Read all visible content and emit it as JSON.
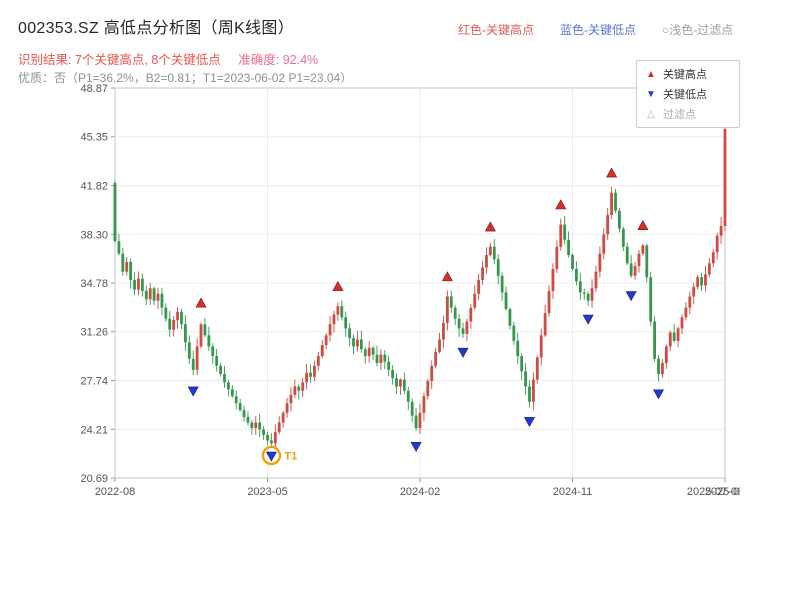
{
  "header": {
    "title": "002353.SZ 高低点分析图（周K线图）",
    "legend_high": "红色-关键高点",
    "legend_low": "蓝色-关键低点",
    "legend_filtered": "○浅色-过滤点"
  },
  "results": {
    "summary": "识别结果: 7个关键高点, 8个关键低点",
    "accuracy": "准确度: 92.4%",
    "quality": "优质：否（P1=36.2%，B2=0.81；T1=2023-06-02 P1=23.04）"
  },
  "legend_box": {
    "high_icon": "▲",
    "high": "关键高点",
    "low_icon": "▼",
    "low": "关键低点",
    "filtered_icon": "△",
    "filtered": "过滤点"
  },
  "chart_data": {
    "type": "candlestick",
    "title": "002353.SZ 高低点分析图（周K线图）",
    "interval": "weekly",
    "ylim": [
      20.69,
      48.87
    ],
    "y_ticks": [
      "48.87",
      "45.35",
      "41.82",
      "38.30",
      "34.78",
      "31.26",
      "27.74",
      "24.21",
      "20.69"
    ],
    "x_ticks": [
      {
        "week": 0,
        "label": "2022-08"
      },
      {
        "week": 39,
        "label": "2023-05"
      },
      {
        "week": 78,
        "label": "2024-02"
      },
      {
        "week": 117,
        "label": "2024-11"
      },
      {
        "week": 156,
        "label": "2025-08"
      }
    ],
    "end_date_label": "2025-07-08",
    "grid": true,
    "first_open": 42.0,
    "closes": [
      37.8,
      36.9,
      35.6,
      36.3,
      35.0,
      34.3,
      35.1,
      34.2,
      33.6,
      34.4,
      33.5,
      34.0,
      33.0,
      32.2,
      31.4,
      32.1,
      32.7,
      31.8,
      30.5,
      29.3,
      28.5,
      30.2,
      31.8,
      31.0,
      30.2,
      29.5,
      28.8,
      28.2,
      27.6,
      27.1,
      26.6,
      26.1,
      25.6,
      25.1,
      24.7,
      24.3,
      24.7,
      24.2,
      23.8,
      23.4,
      23.2,
      24.0,
      24.7,
      25.4,
      26.1,
      26.7,
      27.3,
      27.0,
      27.6,
      28.3,
      28.0,
      28.8,
      29.5,
      30.3,
      31.0,
      31.8,
      32.5,
      33.1,
      32.3,
      31.5,
      30.8,
      30.2,
      30.7,
      30.0,
      29.5,
      30.1,
      29.6,
      29.0,
      29.6,
      29.1,
      28.5,
      27.9,
      27.3,
      27.8,
      27.0,
      26.2,
      25.2,
      24.3,
      25.4,
      26.6,
      27.7,
      28.8,
      29.8,
      30.7,
      31.9,
      33.8,
      33.0,
      32.2,
      31.5,
      31.1,
      32.0,
      33.0,
      34.0,
      35.0,
      35.9,
      36.8,
      37.4,
      36.5,
      35.3,
      34.1,
      32.9,
      31.7,
      30.6,
      29.5,
      28.4,
      27.3,
      26.2,
      27.8,
      29.4,
      31.0,
      32.6,
      34.2,
      35.8,
      37.4,
      39.0,
      37.9,
      36.8,
      35.8,
      34.9,
      34.1,
      34.0,
      33.5,
      34.4,
      35.6,
      36.9,
      38.3,
      39.7,
      41.3,
      40.0,
      38.7,
      37.4,
      36.2,
      35.3,
      36.0,
      36.9,
      37.5,
      35.2,
      32.0,
      29.3,
      28.2,
      29.0,
      30.2,
      31.2,
      30.6,
      31.5,
      32.3,
      33.0,
      33.8,
      34.5,
      35.2,
      34.6,
      35.4,
      36.2,
      37.0,
      38.2,
      38.9,
      45.9
    ],
    "key_high_count": 7,
    "key_low_count": 8,
    "key_highs": [
      {
        "week": 22,
        "price": 32.6
      },
      {
        "week": 57,
        "price": 33.8
      },
      {
        "week": 85,
        "price": 34.5
      },
      {
        "week": 96,
        "price": 38.1
      },
      {
        "week": 114,
        "price": 39.7
      },
      {
        "week": 127,
        "price": 42.0
      },
      {
        "week": 135,
        "price": 38.2
      }
    ],
    "key_lows": [
      {
        "week": 20,
        "price": 27.7
      },
      {
        "week": 40,
        "price": 23.0
      },
      {
        "week": 77,
        "price": 23.7
      },
      {
        "week": 89,
        "price": 30.5
      },
      {
        "week": 106,
        "price": 25.5
      },
      {
        "week": 121,
        "price": 32.9
      },
      {
        "week": 132,
        "price": 34.6
      },
      {
        "week": 139,
        "price": 27.5
      }
    ],
    "t1": {
      "label": "T1",
      "week": 40,
      "price": 23.04,
      "date": "2023-06-02"
    },
    "colors": {
      "up": "#cf4a41",
      "down": "#35974e",
      "key_high": "#d62f2f",
      "key_low": "#2438cf",
      "t1": "#f59f00",
      "grid": "#ececec",
      "border": "#c4c4c4",
      "tick_text": "#555555"
    }
  }
}
